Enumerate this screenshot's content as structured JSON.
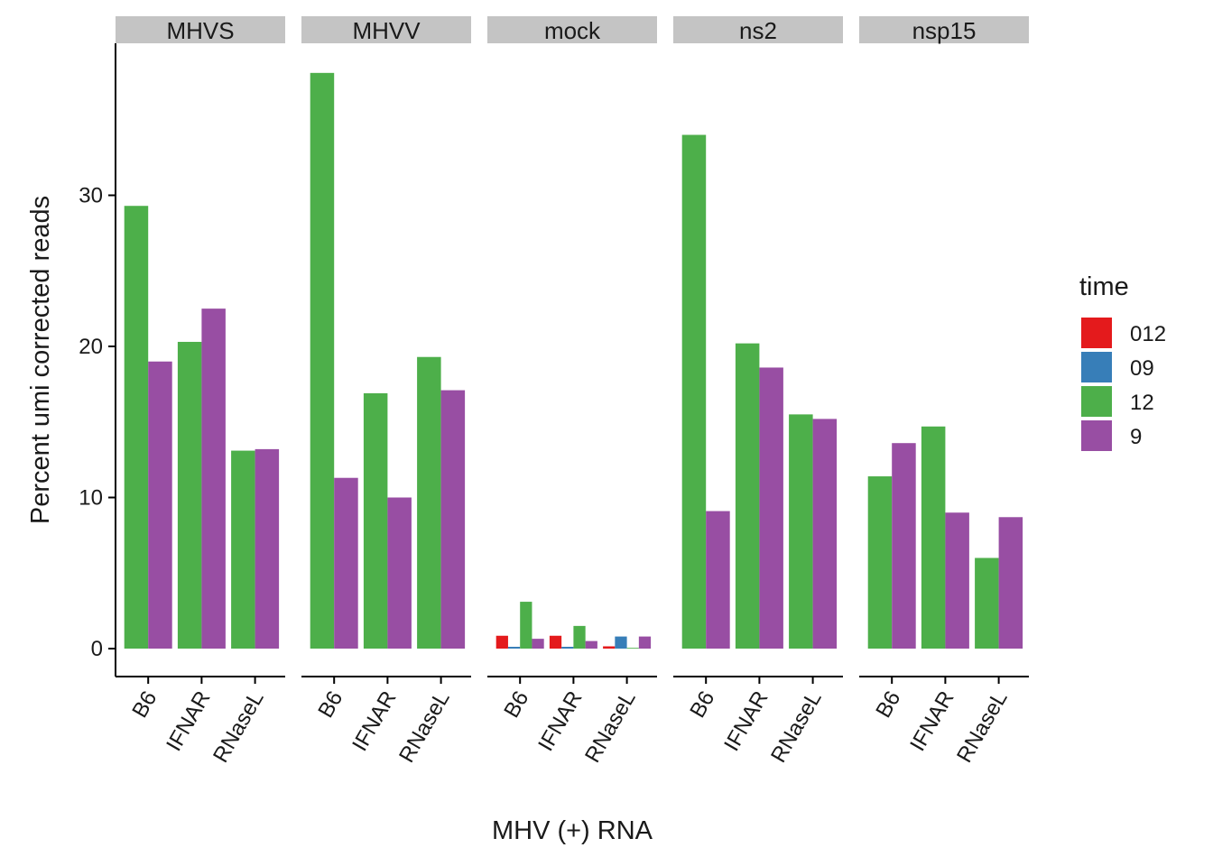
{
  "chart_data": {
    "type": "bar",
    "title": "",
    "xlabel": "MHV (+) RNA",
    "ylabel": "Percent umi corrected reads",
    "ylim": [
      -1.9,
      40
    ],
    "yticks": [
      0,
      10,
      20,
      30
    ],
    "grid": false,
    "legend_position": "right",
    "legend": {
      "title": "time",
      "entries": [
        {
          "label": "012",
          "color": "#e41a1c"
        },
        {
          "label": "09",
          "color": "#377eb8"
        },
        {
          "label": "12",
          "color": "#4daf4a"
        },
        {
          "label": "9",
          "color": "#984ea3"
        }
      ]
    },
    "facet_order": [
      "MHVS",
      "MHVV",
      "mock",
      "ns2",
      "nsp15"
    ],
    "categories": [
      "B6",
      "IFNAR",
      "RNaseL"
    ],
    "facets": [
      {
        "name": "MHVS",
        "groups": [
          {
            "category": "B6",
            "bars": [
              {
                "time": "12",
                "value": 29.3
              },
              {
                "time": "9",
                "value": 19.0
              }
            ]
          },
          {
            "category": "IFNAR",
            "bars": [
              {
                "time": "12",
                "value": 20.3
              },
              {
                "time": "9",
                "value": 22.5
              }
            ]
          },
          {
            "category": "RNaseL",
            "bars": [
              {
                "time": "12",
                "value": 13.1
              },
              {
                "time": "9",
                "value": 13.2
              }
            ]
          }
        ]
      },
      {
        "name": "MHVV",
        "groups": [
          {
            "category": "B6",
            "bars": [
              {
                "time": "12",
                "value": 38.1
              },
              {
                "time": "9",
                "value": 11.3
              }
            ]
          },
          {
            "category": "IFNAR",
            "bars": [
              {
                "time": "12",
                "value": 16.9
              },
              {
                "time": "9",
                "value": 10.0
              }
            ]
          },
          {
            "category": "RNaseL",
            "bars": [
              {
                "time": "12",
                "value": 19.3
              },
              {
                "time": "9",
                "value": 17.1
              }
            ]
          }
        ]
      },
      {
        "name": "mock",
        "groups": [
          {
            "category": "B6",
            "bars": [
              {
                "time": "012",
                "value": 0.85
              },
              {
                "time": "09",
                "value": 0.12
              },
              {
                "time": "12",
                "value": 3.1
              },
              {
                "time": "9",
                "value": 0.65
              }
            ]
          },
          {
            "category": "IFNAR",
            "bars": [
              {
                "time": "012",
                "value": 0.85
              },
              {
                "time": "09",
                "value": 0.12
              },
              {
                "time": "12",
                "value": 1.5
              },
              {
                "time": "9",
                "value": 0.5
              }
            ]
          },
          {
            "category": "RNaseL",
            "bars": [
              {
                "time": "012",
                "value": 0.15
              },
              {
                "time": "09",
                "value": 0.8
              },
              {
                "time": "12",
                "value": 0.05
              },
              {
                "time": "9",
                "value": 0.8
              }
            ]
          }
        ]
      },
      {
        "name": "ns2",
        "groups": [
          {
            "category": "B6",
            "bars": [
              {
                "time": "12",
                "value": 34.0
              },
              {
                "time": "9",
                "value": 9.1
              }
            ]
          },
          {
            "category": "IFNAR",
            "bars": [
              {
                "time": "12",
                "value": 20.2
              },
              {
                "time": "9",
                "value": 18.6
              }
            ]
          },
          {
            "category": "RNaseL",
            "bars": [
              {
                "time": "12",
                "value": 15.5
              },
              {
                "time": "9",
                "value": 15.2
              }
            ]
          }
        ]
      },
      {
        "name": "nsp15",
        "groups": [
          {
            "category": "B6",
            "bars": [
              {
                "time": "12",
                "value": 11.4
              },
              {
                "time": "9",
                "value": 13.6
              }
            ]
          },
          {
            "category": "IFNAR",
            "bars": [
              {
                "time": "12",
                "value": 14.7
              },
              {
                "time": "9",
                "value": 9.0
              }
            ]
          },
          {
            "category": "RNaseL",
            "bars": [
              {
                "time": "12",
                "value": 6.0
              },
              {
                "time": "9",
                "value": 8.7
              }
            ]
          }
        ]
      }
    ]
  }
}
